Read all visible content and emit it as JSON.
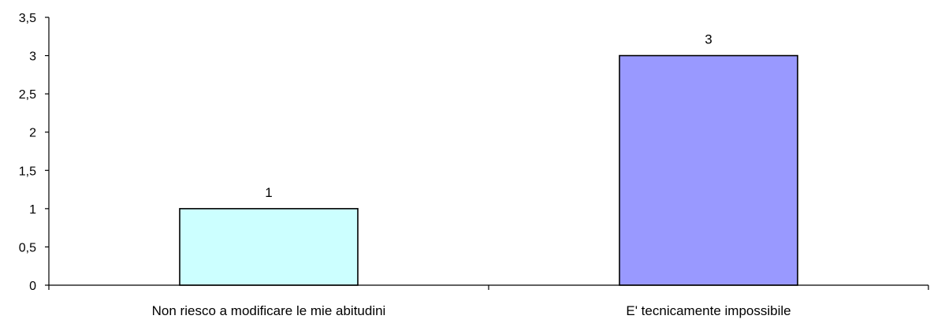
{
  "chart_data": {
    "type": "bar",
    "title": "",
    "xlabel": "",
    "ylabel": "",
    "categories": [
      "Non riesco a modificare le mie abitudini",
      "E' tecnicamente impossibile"
    ],
    "values": [
      1,
      3
    ],
    "data_labels": [
      "1",
      "3"
    ],
    "bar_colors": [
      "#ccffff",
      "#9999ff"
    ],
    "ylim": [
      0,
      3.5
    ],
    "yticks": [
      0,
      0.5,
      1,
      1.5,
      2,
      2.5,
      3,
      3.5
    ],
    "ytick_labels": [
      "0",
      "0,5",
      "1",
      "1,5",
      "2",
      "2,5",
      "3",
      "3,5"
    ],
    "grid": false,
    "legend": "none"
  }
}
